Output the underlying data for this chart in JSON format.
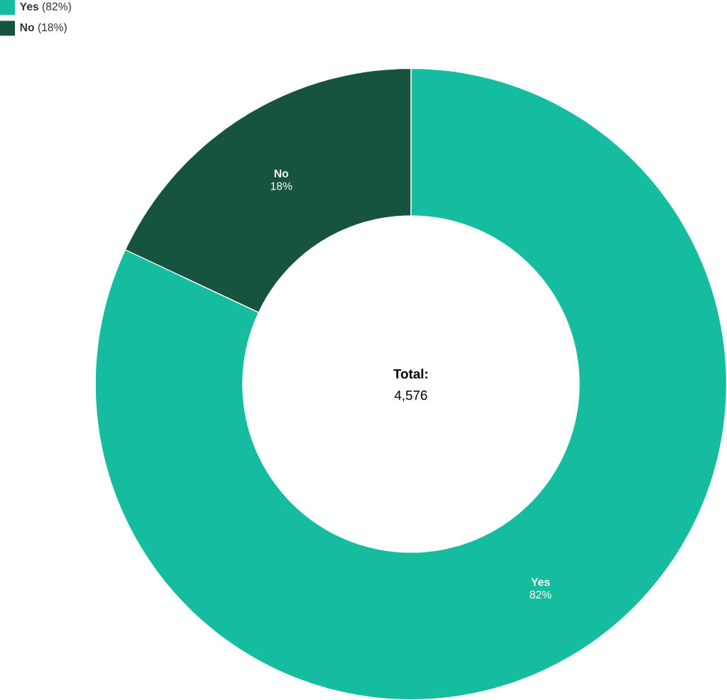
{
  "chart_data": {
    "type": "donut",
    "categories": [
      "Yes",
      "No"
    ],
    "values": [
      82,
      18
    ],
    "colors": [
      "#16bc9e",
      "#175440"
    ],
    "value_labels": [
      "82%",
      "18%"
    ],
    "legend": "top left",
    "annotations": [
      "(82%)",
      "(18%)",
      "Total:",
      "4,576"
    ]
  }
}
